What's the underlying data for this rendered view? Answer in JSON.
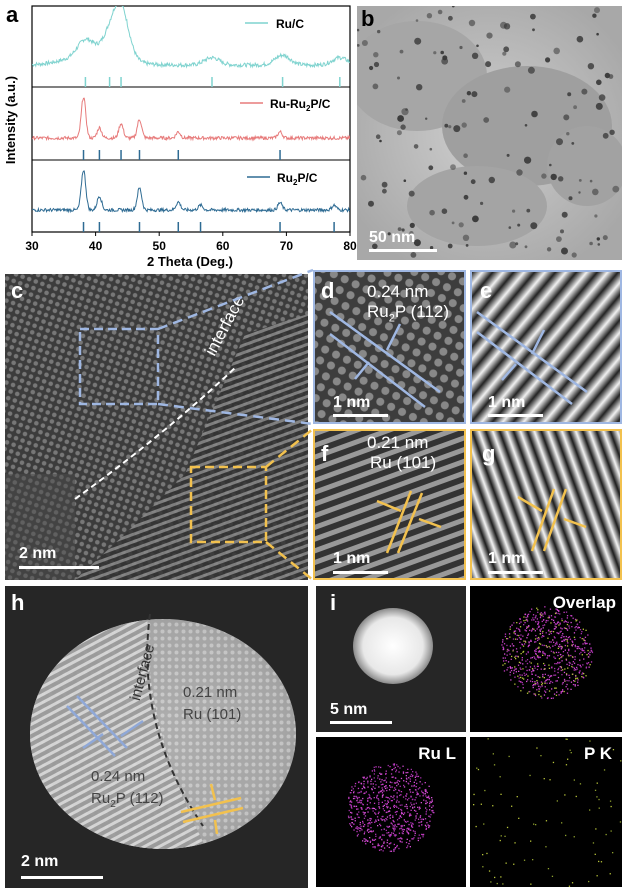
{
  "panels": {
    "a": "a",
    "b": "b",
    "c": "c",
    "d": "d",
    "e": "e",
    "f": "f",
    "g": "g",
    "h": "h",
    "i": "i"
  },
  "chart_data": {
    "type": "line",
    "xlabel": "2 Theta (Deg.)",
    "ylabel": "Intensity (a.u.)",
    "xlim": [
      30,
      80
    ],
    "xticks": [
      30,
      40,
      50,
      60,
      70,
      80
    ],
    "series": [
      {
        "name": "Ru/C",
        "color": "#7fd3cf",
        "peaks": [
          [
            38.4,
            0.3
          ],
          [
            42.2,
            0.35
          ],
          [
            44.0,
            1.0
          ],
          [
            58.3,
            0.15
          ],
          [
            69.4,
            0.2
          ],
          [
            78.4,
            0.15
          ]
        ],
        "ref_lines": [
          38.4,
          42.2,
          44.0,
          58.3,
          69.4,
          78.4
        ]
      },
      {
        "name": "Ru-Ru2P/C",
        "color": "#e77b7b",
        "peaks": [
          [
            38.1,
            1.0
          ],
          [
            40.6,
            0.25
          ],
          [
            44.0,
            0.35
          ],
          [
            46.9,
            0.45
          ],
          [
            53.0,
            0.15
          ],
          [
            69.0,
            0.15
          ]
        ],
        "ref_lines": [
          38.1,
          40.6,
          44.0,
          46.9,
          53.0,
          69.0
        ]
      },
      {
        "name": "Ru2P/C",
        "color": "#2e6b93",
        "peaks": [
          [
            38.1,
            1.0
          ],
          [
            40.6,
            0.35
          ],
          [
            46.9,
            0.55
          ],
          [
            53.0,
            0.2
          ],
          [
            56.5,
            0.12
          ],
          [
            69.0,
            0.18
          ],
          [
            77.5,
            0.12
          ]
        ],
        "ref_lines": [
          38.1,
          40.6,
          46.9,
          53.0,
          56.5,
          69.0,
          77.5
        ]
      }
    ]
  },
  "legend": {
    "ruc": "Ru/C",
    "rurup_main": "Ru-Ru",
    "rurup_sub": "2",
    "rurup_end": "P/C",
    "rup_main": "Ru",
    "rup_sub": "2",
    "rup_end": "P/C"
  },
  "scalebars": {
    "b": "50 nm",
    "c": "2 nm",
    "d": "1 nm",
    "e": "1 nm",
    "f": "1 nm",
    "g": "1 nm",
    "h": "2 nm",
    "i": "5 nm"
  },
  "annotations": {
    "c_interface": "interface",
    "d_spacing": "0.24 nm",
    "d_phase_main": "Ru",
    "d_phase_sub": "2",
    "d_phase_end": "P (112)",
    "f_spacing": "0.21 nm",
    "f_phase": "Ru (101)",
    "h_interface": "interface",
    "h_ru_spacing": "0.21 nm",
    "h_ru_phase": "Ru (101)",
    "h_rup_spacing": "0.24 nm",
    "h_rup_main": "Ru",
    "h_rup_sub": "2",
    "h_rup_end": "P (112)"
  },
  "maps": {
    "overlap": "Overlap",
    "ru": "Ru L",
    "p": "P K"
  },
  "colors": {
    "blue_accent": "#8fa8d8",
    "yellow_accent": "#f2c14e"
  }
}
